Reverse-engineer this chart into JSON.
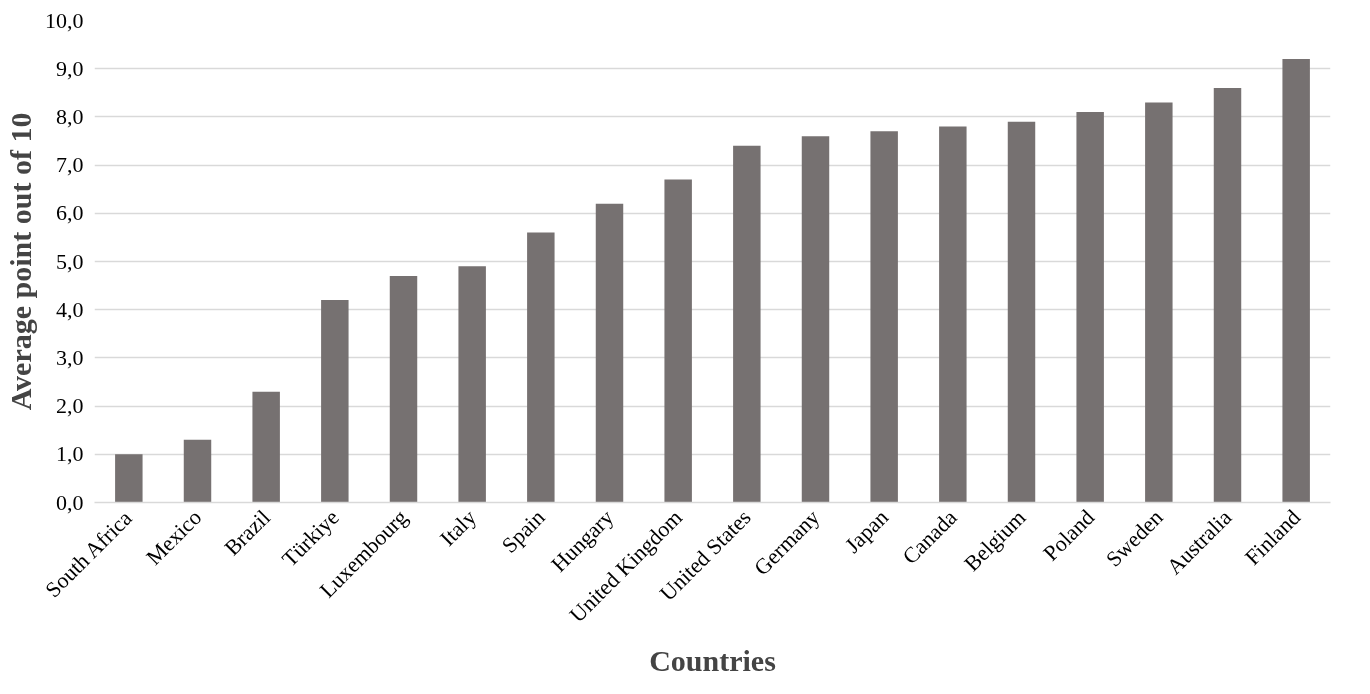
{
  "chart_data": {
    "type": "bar",
    "xlabel": "Countries",
    "ylabel": "Average point out of 10",
    "categories": [
      "South Africa",
      "Mexico",
      "Brazil",
      "Türkiye",
      "Luxembourg",
      "Italy",
      "Spain",
      "Hungary",
      "United Kingdom",
      "United States",
      "Germany",
      "Japan",
      "Canada",
      "Belgium",
      "Poland",
      "Sweden",
      "Australia",
      "Finland"
    ],
    "values": [
      1.0,
      1.3,
      2.3,
      4.2,
      4.7,
      4.9,
      5.6,
      6.2,
      6.7,
      7.4,
      7.6,
      7.7,
      7.8,
      7.9,
      8.1,
      8.3,
      8.6,
      9.2
    ],
    "color": "#767171",
    "ylim": [
      0,
      10
    ],
    "yticks": [
      {
        "value": 0,
        "label": "0,0"
      },
      {
        "value": 1,
        "label": "1,0"
      },
      {
        "value": 2,
        "label": "2,0"
      },
      {
        "value": 3,
        "label": "3,0"
      },
      {
        "value": 4,
        "label": "4,0"
      },
      {
        "value": 5,
        "label": "5,0"
      },
      {
        "value": 6,
        "label": "6,0"
      },
      {
        "value": 7,
        "label": "7,0"
      },
      {
        "value": 8,
        "label": "8,0"
      },
      {
        "value": 9,
        "label": "9,0"
      },
      {
        "value": 10,
        "label": "10,0"
      }
    ],
    "grid": "y"
  }
}
